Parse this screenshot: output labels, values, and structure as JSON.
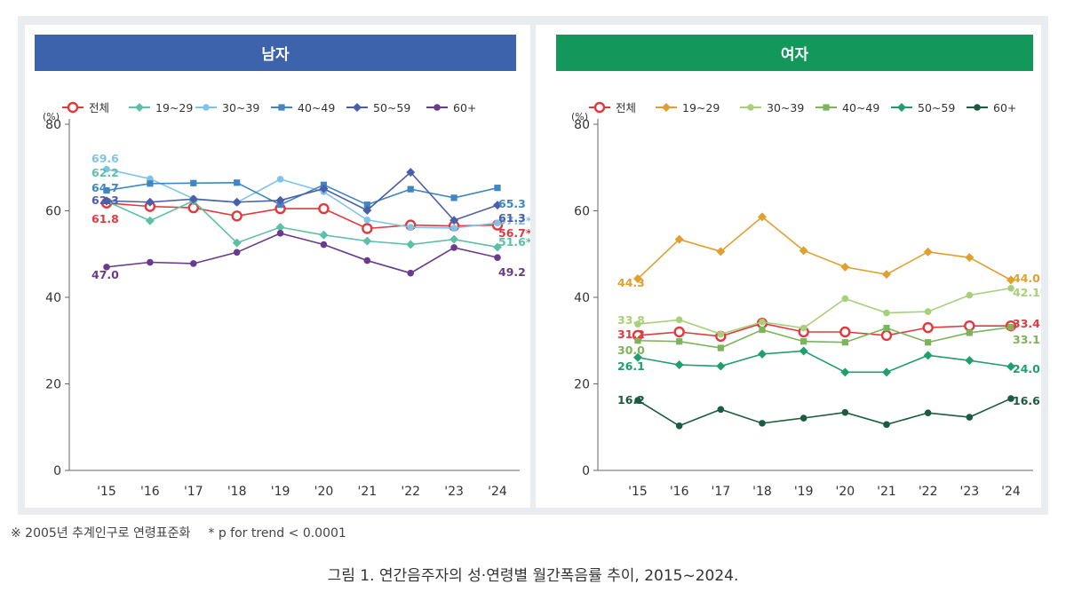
{
  "footnote": {
    "standardization": "※ 2005년 추계인구로 연령표준화",
    "trend": "* p for trend < 0.0001"
  },
  "caption": "그림 1. 연간음주자의 성·연령별 월간폭음률 추이, 2015~2024.",
  "chart_data": [
    {
      "type": "line",
      "title": "남자",
      "header_color": "#3e63ad",
      "ylabel": "(%)",
      "ylim": [
        0,
        80
      ],
      "yticks": [
        0,
        20,
        40,
        60,
        80
      ],
      "categories": [
        "'15",
        "'16",
        "'17",
        "'18",
        "'19",
        "'20",
        "'21",
        "'22",
        "'23",
        "'24"
      ],
      "series": [
        {
          "name": "전체",
          "color": "#e03a3e",
          "marker": "open-circle",
          "values": [
            61.8,
            61.0,
            60.7,
            58.8,
            60.5,
            60.5,
            55.9,
            56.7,
            56.5,
            56.7
          ],
          "start_label": "61.8",
          "end_label": "56.7*"
        },
        {
          "name": "19~29",
          "color": "#5cc0a6",
          "marker": "diamond",
          "values": [
            62.2,
            57.7,
            62.3,
            52.6,
            56.2,
            54.4,
            53.0,
            52.2,
            53.4,
            51.6
          ],
          "start_label": "62.2",
          "end_label": "51.6*"
        },
        {
          "name": "30~39",
          "color": "#7fc4e8",
          "marker": "circle",
          "values": [
            69.6,
            67.4,
            62.8,
            61.9,
            67.3,
            64.4,
            57.9,
            56.2,
            56.0,
            57.2
          ],
          "start_label": "69.6",
          "end_label": "57.2*"
        },
        {
          "name": "40~49",
          "color": "#3f86c3",
          "marker": "square",
          "values": [
            64.7,
            66.3,
            66.4,
            66.5,
            61.4,
            66.0,
            61.4,
            65.0,
            63.0,
            65.3
          ],
          "start_label": "64.7",
          "end_label": "65.3"
        },
        {
          "name": "50~59",
          "color": "#4b5ea9",
          "marker": "diamond",
          "values": [
            62.3,
            62.0,
            62.7,
            62.0,
            62.4,
            65.1,
            60.1,
            68.9,
            57.8,
            61.3
          ],
          "start_label": "62.3",
          "end_label": "61.3"
        },
        {
          "name": "60+",
          "color": "#6a3a8c",
          "marker": "circle",
          "values": [
            47.0,
            48.1,
            47.8,
            50.4,
            54.8,
            52.2,
            48.5,
            45.6,
            51.5,
            49.2
          ],
          "start_label": "47.0",
          "end_label": "49.2"
        }
      ]
    },
    {
      "type": "line",
      "title": "여자",
      "header_color": "#13975a",
      "ylabel": "(%)",
      "ylim": [
        0,
        80
      ],
      "yticks": [
        0,
        20,
        40,
        60,
        80
      ],
      "categories": [
        "'15",
        "'16",
        "'17",
        "'18",
        "'19",
        "'20",
        "'21",
        "'22",
        "'23",
        "'24"
      ],
      "series": [
        {
          "name": "전체",
          "color": "#e03a3e",
          "marker": "open-circle",
          "values": [
            31.2,
            32.0,
            31.0,
            34.0,
            32.0,
            32.0,
            31.2,
            33.0,
            33.4,
            33.4
          ],
          "start_label": "31.2",
          "end_label": "33.4"
        },
        {
          "name": "19~29",
          "color": "#e0a030",
          "marker": "diamond",
          "values": [
            44.3,
            53.4,
            50.6,
            58.6,
            50.8,
            47.0,
            45.3,
            50.5,
            49.2,
            44.0
          ],
          "start_label": "44.3",
          "end_label": "44.0"
        },
        {
          "name": "30~39",
          "color": "#a8d07a",
          "marker": "circle",
          "values": [
            33.8,
            34.8,
            31.5,
            34.3,
            32.9,
            39.7,
            36.4,
            36.7,
            40.5,
            42.1
          ],
          "start_label": "33.8",
          "end_label": "42.1*"
        },
        {
          "name": "40~49",
          "color": "#7db35a",
          "marker": "square",
          "values": [
            30.0,
            29.8,
            28.3,
            32.5,
            29.8,
            29.6,
            32.9,
            29.6,
            31.8,
            33.1
          ],
          "start_label": "30.0",
          "end_label": "33.1"
        },
        {
          "name": "50~59",
          "color": "#1f9e6e",
          "marker": "diamond",
          "values": [
            26.1,
            24.4,
            24.1,
            26.9,
            27.6,
            22.7,
            22.7,
            26.6,
            25.4,
            24.0
          ],
          "start_label": "26.1",
          "end_label": "24.0"
        },
        {
          "name": "60+",
          "color": "#1a5c40",
          "marker": "circle",
          "values": [
            16.2,
            10.3,
            14.1,
            10.9,
            12.1,
            13.4,
            10.6,
            13.3,
            12.3,
            16.6
          ],
          "start_label": "16.2",
          "end_label": "16.6"
        }
      ]
    }
  ]
}
